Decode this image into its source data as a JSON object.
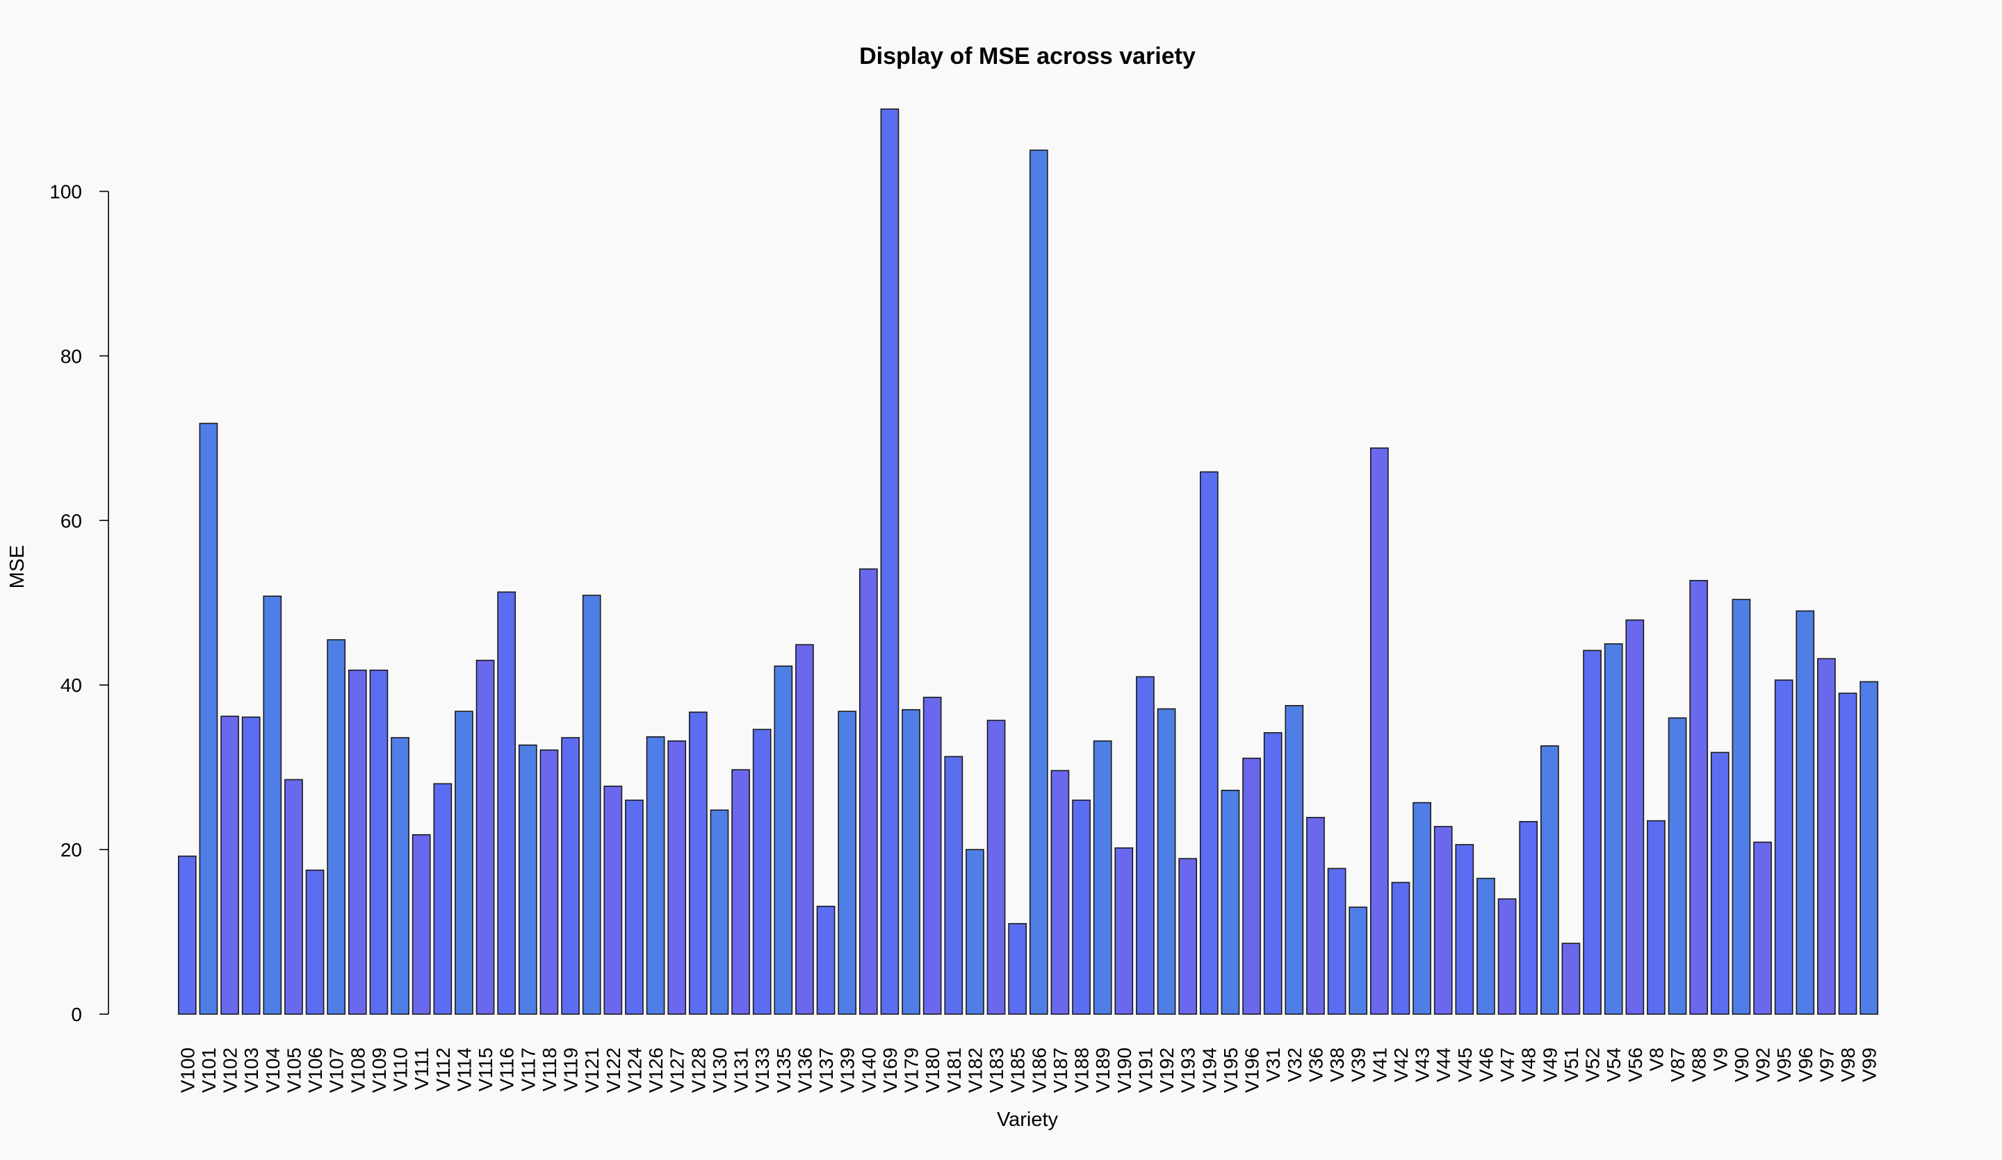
{
  "chart_data": {
    "type": "bar",
    "title": "Display of MSE across variety",
    "xlabel": "Variety",
    "ylabel": "MSE",
    "ylim": [
      0,
      110
    ],
    "yticks": [
      0,
      20,
      40,
      60,
      80,
      100
    ],
    "grid": false,
    "legend": "none",
    "bar_colors": [
      "#5b6df0",
      "#4f7fe6",
      "#6a68ec"
    ],
    "categories": [
      "V100",
      "V101",
      "V102",
      "V103",
      "V104",
      "V105",
      "V106",
      "V107",
      "V108",
      "V109",
      "V110",
      "V111",
      "V112",
      "V114",
      "V115",
      "V116",
      "V117",
      "V118",
      "V119",
      "V121",
      "V122",
      "V124",
      "V126",
      "V127",
      "V128",
      "V130",
      "V131",
      "V133",
      "V135",
      "V136",
      "V137",
      "V139",
      "V140",
      "V169",
      "V179",
      "V180",
      "V181",
      "V182",
      "V183",
      "V185",
      "V186",
      "V187",
      "V188",
      "V189",
      "V190",
      "V191",
      "V192",
      "V193",
      "V194",
      "V195",
      "V196",
      "V31",
      "V32",
      "V36",
      "V38",
      "V39",
      "V41",
      "V42",
      "V43",
      "V44",
      "V45",
      "V46",
      "V47",
      "V48",
      "V49",
      "V51",
      "V52",
      "V54",
      "V56",
      "V8",
      "V87",
      "V88",
      "V9",
      "V90",
      "V92",
      "V95",
      "V96",
      "V97",
      "V98",
      "V99"
    ],
    "values": [
      19.2,
      71.8,
      36.2,
      36.1,
      50.8,
      28.5,
      17.5,
      45.5,
      41.8,
      41.8,
      33.6,
      21.8,
      28.0,
      36.8,
      43.0,
      51.3,
      32.7,
      32.1,
      33.6,
      50.9,
      27.7,
      26.0,
      33.7,
      33.2,
      36.7,
      24.8,
      29.7,
      34.6,
      42.3,
      44.9,
      13.1,
      36.8,
      54.1,
      110.0,
      37.0,
      38.5,
      31.3,
      20.0,
      35.7,
      11.0,
      105.0,
      29.6,
      26.0,
      33.2,
      20.2,
      41.0,
      37.1,
      18.9,
      65.9,
      27.2,
      31.1,
      34.2,
      37.5,
      23.9,
      17.7,
      13.0,
      68.8,
      16.0,
      25.7,
      22.8,
      20.6,
      16.5,
      14.0,
      23.4,
      32.6,
      8.6,
      44.2,
      45.0,
      47.9,
      23.5,
      36.0,
      52.7,
      31.8,
      50.4,
      20.9,
      40.6,
      49.0,
      43.2,
      39.0,
      40.4
    ]
  }
}
